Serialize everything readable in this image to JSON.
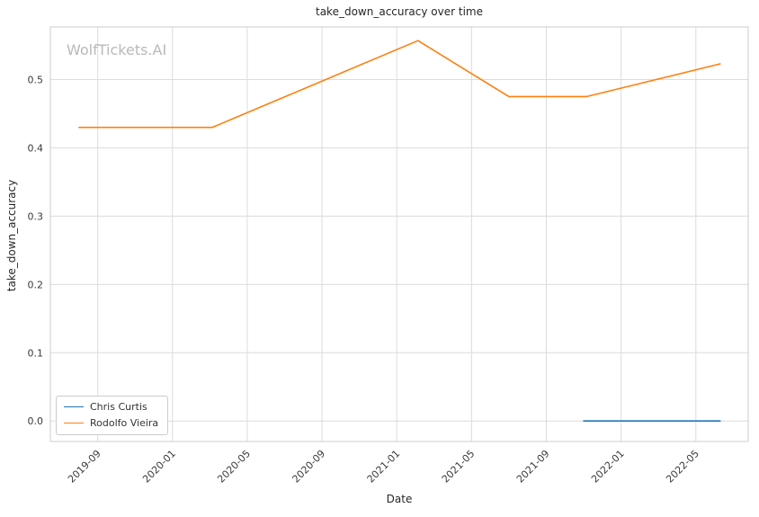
{
  "chart_data": {
    "type": "line",
    "title": "take_down_accuracy over time",
    "watermark": "WolfTickets.AI",
    "xlabel": "Date",
    "ylabel": "take_down_accuracy",
    "grid": true,
    "legend_position": "lower left",
    "x_ticks": [
      "2019-09",
      "2020-01",
      "2020-05",
      "2020-09",
      "2021-01",
      "2021-05",
      "2021-09",
      "2022-01",
      "2022-05"
    ],
    "y_ticks": [
      0.0,
      0.1,
      0.2,
      0.3,
      0.4,
      0.5
    ],
    "xlim": [
      "2019-06-15",
      "2022-07-25"
    ],
    "ylim": [
      -0.03,
      0.577
    ],
    "series": [
      {
        "name": "Chris Curtis",
        "color": "#1f77b4",
        "points": [
          [
            "2021-11-01",
            0.0
          ],
          [
            "2022-06-10",
            0.0
          ]
        ]
      },
      {
        "name": "Rodolfo Vieira",
        "color": "#ff7f0e",
        "points": [
          [
            "2019-08-01",
            0.43
          ],
          [
            "2020-03-05",
            0.43
          ],
          [
            "2021-02-05",
            0.557
          ],
          [
            "2021-07-01",
            0.475
          ],
          [
            "2021-11-05",
            0.475
          ],
          [
            "2022-06-10",
            0.523
          ]
        ]
      }
    ],
    "style": {
      "grid_color": "#dcdcdc",
      "spine_color": "#cccccc",
      "tick_color": "#3a3a3a"
    }
  }
}
